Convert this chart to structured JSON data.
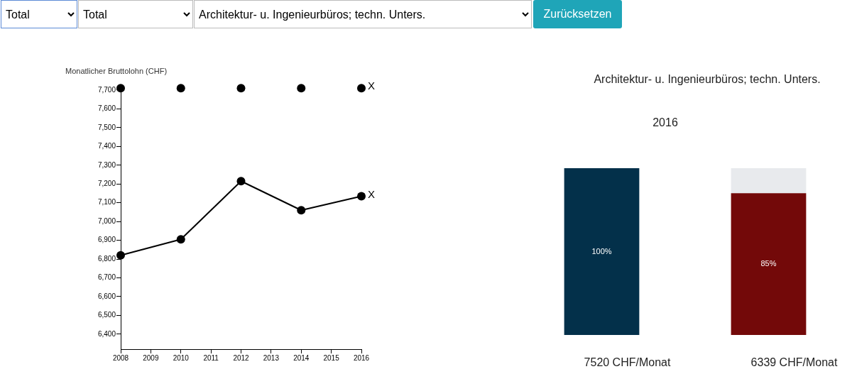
{
  "chart_data": [
    {
      "type": "other",
      "annotations": [
        "Total",
        "Total",
        "Architektur- u. Ingenieurbüros; techn. Unters.",
        "Zurücksetzen"
      ]
    },
    {
      "type": "line",
      "ylabel": "Monatlicher Bruttolohn (CHF)",
      "x": [
        2008,
        2010,
        2012,
        2014,
        2016
      ],
      "xlim": [
        2008,
        2016
      ],
      "xticks": [
        2008,
        2009,
        2010,
        2011,
        2012,
        2013,
        2014,
        2015,
        2016
      ],
      "ylim": [
        6320,
        7715
      ],
      "yticks": [
        {
          "value": 6400,
          "label": "6,400"
        },
        {
          "value": 6500,
          "label": "6,500"
        },
        {
          "value": 6600,
          "label": "6,600"
        },
        {
          "value": 6700,
          "label": "6,700"
        },
        {
          "value": 6800,
          "label": "6,800"
        },
        {
          "value": 6900,
          "label": "6,900"
        },
        {
          "value": 7000,
          "label": "7,000"
        },
        {
          "value": 7100,
          "label": "7,100"
        },
        {
          "value": 7200,
          "label": "7,200"
        },
        {
          "value": 7300,
          "label": "7,300"
        },
        {
          "value": 7400,
          "label": "7,400"
        },
        {
          "value": 7500,
          "label": "7,500"
        },
        {
          "value": 7600,
          "label": "7,600"
        },
        {
          "value": 7700,
          "label": "7,700"
        }
      ],
      "marker": "circle",
      "series": [
        {
          "name": "X",
          "type": "scatter",
          "color": "#000000",
          "values": [
            7710,
            7710,
            7710,
            7710,
            7710
          ]
        },
        {
          "name": "X",
          "color": "#000000",
          "values": [
            6820,
            6905,
            7215,
            7060,
            7135
          ]
        }
      ]
    },
    {
      "type": "bar",
      "title": "Architektur- u. Ingenieurbüros; techn. Unters.",
      "subtitle": "2016",
      "categories": [
        "7520 CHF/Monat",
        "6339 CHF/Monat"
      ],
      "stacked": true,
      "tick_labels": "x",
      "series": [
        {
          "colors": [
            "#03304a",
            "#730909"
          ],
          "values": [
            100,
            85
          ],
          "value_labels": [
            "100%",
            "85%"
          ]
        },
        {
          "color": "#e8eaed",
          "values": [
            0,
            15
          ]
        }
      ]
    }
  ]
}
